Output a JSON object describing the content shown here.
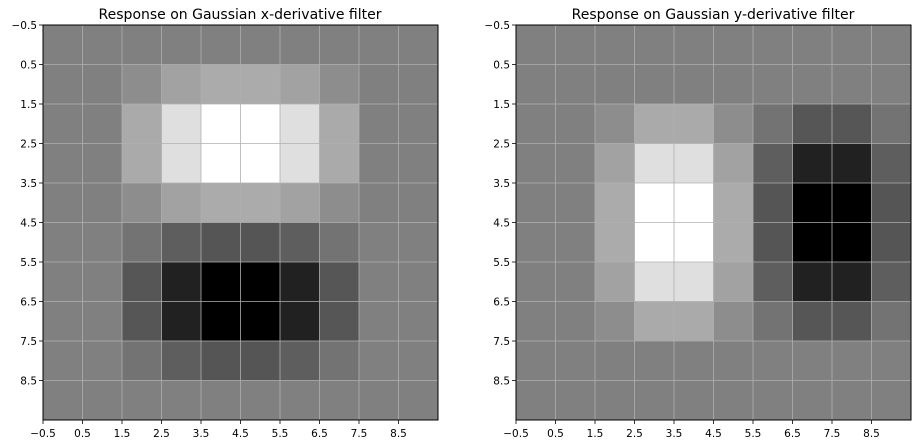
{
  "chart_data": [
    {
      "type": "heatmap",
      "title": "Response on Gaussian x-derivative filter",
      "colormap": "gray",
      "grid": true,
      "xlim": [
        -0.5,
        9.5
      ],
      "ylim": [
        9.5,
        -0.5
      ],
      "x_ticks": [
        "−0.5",
        "0.5",
        "1.5",
        "2.5",
        "3.5",
        "4.5",
        "5.5",
        "6.5",
        "7.5",
        "8.5"
      ],
      "y_ticks": [
        "−0.5",
        "0.5",
        "1.5",
        "2.5",
        "3.5",
        "4.5",
        "5.5",
        "6.5",
        "7.5",
        "8.5"
      ],
      "values": [
        [
          128,
          128,
          128,
          128,
          128,
          128,
          128,
          128,
          128,
          128
        ],
        [
          128,
          128,
          141,
          162,
          171,
          171,
          162,
          141,
          128,
          128
        ],
        [
          128,
          128,
          170,
          223,
          255,
          255,
          223,
          170,
          128,
          128
        ],
        [
          128,
          128,
          170,
          223,
          255,
          255,
          223,
          170,
          128,
          128
        ],
        [
          128,
          128,
          141,
          162,
          171,
          171,
          162,
          141,
          128,
          128
        ],
        [
          128,
          128,
          115,
          94,
          85,
          85,
          94,
          115,
          128,
          128
        ],
        [
          128,
          128,
          86,
          33,
          0,
          0,
          33,
          86,
          128,
          128
        ],
        [
          128,
          128,
          86,
          33,
          0,
          0,
          33,
          86,
          128,
          128
        ],
        [
          128,
          128,
          115,
          94,
          85,
          85,
          94,
          115,
          128,
          128
        ],
        [
          128,
          128,
          128,
          128,
          128,
          128,
          128,
          128,
          128,
          128
        ]
      ]
    },
    {
      "type": "heatmap",
      "title": "Response on Gaussian y-derivative filter",
      "colormap": "gray",
      "grid": true,
      "xlim": [
        -0.5,
        9.5
      ],
      "ylim": [
        9.5,
        -0.5
      ],
      "x_ticks": [
        "−0.5",
        "0.5",
        "1.5",
        "2.5",
        "3.5",
        "4.5",
        "5.5",
        "6.5",
        "7.5",
        "8.5"
      ],
      "y_ticks": [
        "−0.5",
        "0.5",
        "1.5",
        "2.5",
        "3.5",
        "4.5",
        "5.5",
        "6.5",
        "7.5",
        "8.5"
      ],
      "values": [
        [
          128,
          128,
          128,
          128,
          128,
          128,
          128,
          128,
          128,
          128
        ],
        [
          128,
          128,
          128,
          128,
          128,
          128,
          128,
          128,
          128,
          128
        ],
        [
          128,
          128,
          141,
          170,
          170,
          141,
          115,
          86,
          86,
          115
        ],
        [
          128,
          128,
          162,
          223,
          223,
          162,
          94,
          33,
          33,
          94
        ],
        [
          128,
          128,
          171,
          255,
          255,
          171,
          85,
          0,
          0,
          85
        ],
        [
          128,
          128,
          171,
          255,
          255,
          171,
          85,
          0,
          0,
          85
        ],
        [
          128,
          128,
          162,
          223,
          223,
          162,
          94,
          33,
          33,
          94
        ],
        [
          128,
          128,
          141,
          170,
          170,
          141,
          115,
          86,
          86,
          115
        ],
        [
          128,
          128,
          128,
          128,
          128,
          128,
          128,
          128,
          128,
          128
        ],
        [
          128,
          128,
          128,
          128,
          128,
          128,
          128,
          128,
          128,
          128
        ]
      ]
    }
  ]
}
